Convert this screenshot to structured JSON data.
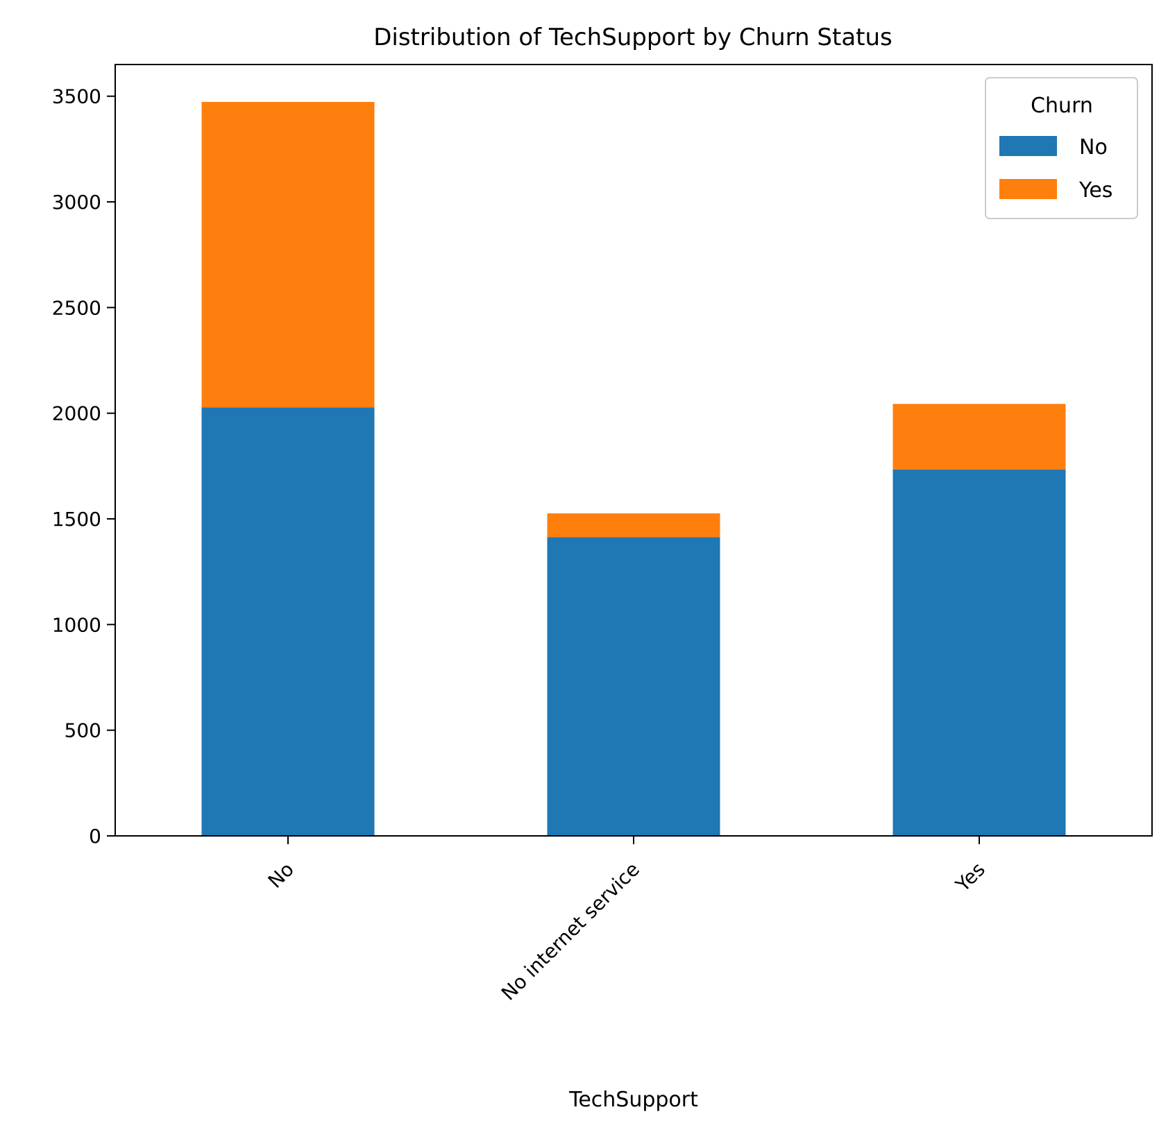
{
  "chart_data": {
    "type": "bar",
    "stacked": true,
    "title": "Distribution of TechSupport by Churn Status",
    "xlabel": "TechSupport",
    "ylabel": "",
    "categories": [
      "No",
      "No internet service",
      "Yes"
    ],
    "series": [
      {
        "name": "No",
        "values": [
          2027,
          1413,
          1734
        ],
        "color": "#1f77b4"
      },
      {
        "name": "Yes",
        "values": [
          1446,
          113,
          310
        ],
        "color": "#ff7f0e"
      }
    ],
    "ylim": [
      0,
      3650
    ],
    "yticks": [
      0,
      500,
      1000,
      1500,
      2000,
      2500,
      3000,
      3500
    ],
    "grid": false,
    "legend": {
      "title": "Churn",
      "position": "top-right"
    }
  }
}
